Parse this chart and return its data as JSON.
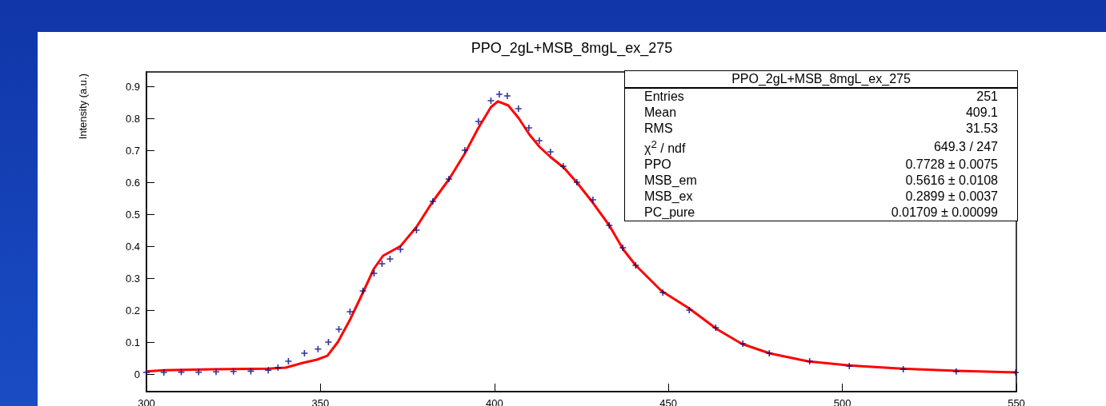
{
  "chart_data": {
    "type": "scatter",
    "title": "PPO_2gL+MSB_8mgL_ex_275",
    "ylabel": "Intensity (a.u.)",
    "xlim": [
      300,
      550
    ],
    "xticks": [
      300,
      350,
      400,
      450,
      500,
      550
    ],
    "ylim": [
      -0.055,
      0.945
    ],
    "yticks": [
      0,
      0.1,
      0.2,
      0.3,
      0.4,
      0.5,
      0.6,
      0.7,
      0.8,
      0.9
    ],
    "grid": false,
    "legend": false,
    "series": [
      {
        "color": "#000080",
        "marker": "cross",
        "x": [
          300,
          305,
          310,
          315,
          320,
          325,
          330,
          335,
          337.8,
          340.8,
          345.4,
          349.3,
          352.3,
          355.3,
          358.5,
          362.2,
          365.4,
          367.7,
          370,
          373,
          377.6,
          382.3,
          386.9,
          391.5,
          395.4,
          399,
          401.4,
          403.7,
          406.9,
          409.9,
          412.9,
          416.1,
          419.8,
          423.7,
          428.3,
          433,
          436.9,
          440.6,
          448.4,
          456,
          463.6,
          471.4,
          479,
          490.6,
          502,
          517.5,
          532.7,
          549.8
        ],
        "values": [
          0.005,
          0.005,
          0.006,
          0.006,
          0.007,
          0.008,
          0.009,
          0.012,
          0.02,
          0.04,
          0.065,
          0.078,
          0.1,
          0.14,
          0.195,
          0.26,
          0.315,
          0.345,
          0.36,
          0.39,
          0.45,
          0.54,
          0.61,
          0.7,
          0.79,
          0.855,
          0.875,
          0.87,
          0.83,
          0.77,
          0.73,
          0.695,
          0.65,
          0.6,
          0.545,
          0.465,
          0.395,
          0.34,
          0.255,
          0.2,
          0.145,
          0.095,
          0.065,
          0.04,
          0.025,
          0.015,
          0.008,
          0.005
        ]
      },
      {
        "type": "line",
        "color": "#ff0000",
        "marker": "none",
        "line_style": "solid",
        "x": [
          300,
          305,
          320,
          335,
          340,
          345,
          349,
          352,
          355,
          358.5,
          362,
          365.4,
          368,
          373,
          377.6,
          382.3,
          387,
          391.5,
          395.4,
          399,
          401,
          404,
          407,
          410,
          413,
          416,
          420,
          424,
          428,
          433,
          437,
          440.6,
          448,
          456,
          464,
          471,
          479,
          490,
          502,
          517,
          533,
          550
        ],
        "values": [
          0.008,
          0.012,
          0.015,
          0.017,
          0.02,
          0.035,
          0.045,
          0.057,
          0.1,
          0.17,
          0.25,
          0.33,
          0.37,
          0.4,
          0.46,
          0.54,
          0.61,
          0.69,
          0.77,
          0.835,
          0.853,
          0.84,
          0.8,
          0.75,
          0.71,
          0.68,
          0.645,
          0.595,
          0.54,
          0.465,
          0.39,
          0.34,
          0.26,
          0.205,
          0.14,
          0.095,
          0.065,
          0.04,
          0.027,
          0.017,
          0.01,
          0.005
        ]
      }
    ],
    "annotations": [
      "PPO_2gL+MSB_8mgL_ex_275",
      "Entries",
      "251",
      "Mean",
      "409.1",
      "RMS",
      "31.53",
      "χ$^{2}$ / ndf",
      "649.3 / 247",
      "PPO",
      "0.7728 ± 0.0075",
      "MSB_em",
      "0.5616 ± 0.0108",
      "MSB_ex",
      "0.2899 ± 0.0037",
      "PC_pure",
      "0.01709 ± 0.00099"
    ]
  }
}
